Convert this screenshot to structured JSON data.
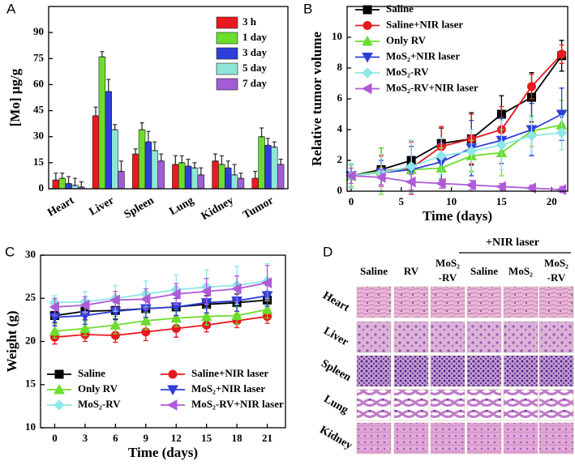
{
  "chart_data": [
    {
      "type": "bar",
      "label": "A",
      "ylabel": "[Mo] μg/g",
      "categories": [
        "Heart",
        "Liver",
        "Spleen",
        "Lung",
        "Kidney",
        "Tumor"
      ],
      "series": [
        {
          "name": "3 h",
          "color": "#e8191f",
          "values": [
            5,
            42,
            20,
            14,
            16,
            6
          ],
          "errors": [
            4,
            5,
            3,
            5,
            4,
            4
          ]
        },
        {
          "name": "1 day",
          "color": "#6cdd2b",
          "values": [
            6,
            76,
            34,
            15,
            14,
            30
          ],
          "errors": [
            3,
            3,
            4,
            4,
            5,
            5
          ]
        },
        {
          "name": "3 day",
          "color": "#2e3fd8",
          "values": [
            3,
            56,
            27,
            13,
            12,
            25
          ],
          "errors": [
            4,
            7,
            6,
            4,
            4,
            4
          ]
        },
        {
          "name": "5 day",
          "color": "#8ee6d8",
          "values": [
            2,
            34,
            22,
            12,
            8,
            24
          ],
          "errors": [
            4,
            3,
            5,
            3,
            6,
            3
          ]
        },
        {
          "name": "7 day",
          "color": "#a25cd6",
          "values": [
            1,
            10,
            16,
            8,
            6,
            14
          ],
          "errors": [
            3,
            6,
            4,
            4,
            3,
            3
          ]
        }
      ],
      "ylim": [
        0,
        105
      ],
      "yticks": [
        0,
        15,
        30,
        45,
        60,
        75,
        90
      ],
      "legend": "upper right"
    },
    {
      "type": "line",
      "label": "B",
      "xlabel": "Time (days)",
      "ylabel": "Relative tumor volume",
      "x": [
        0,
        3,
        6,
        9,
        12,
        15,
        18,
        21
      ],
      "series": [
        {
          "name": "Saline",
          "color": "#000000",
          "marker": "square",
          "values": [
            1,
            1.4,
            2,
            3.1,
            3.4,
            5,
            6.1,
            8.8
          ],
          "errors": [
            0.8,
            1.4,
            1.3,
            1,
            1.7,
            1.2,
            1.6,
            1
          ]
        },
        {
          "name": "Saline+NIR laser",
          "color": "#e8191f",
          "marker": "circle",
          "values": [
            1,
            1.3,
            1.5,
            2.9,
            3.4,
            4,
            6.8,
            8.9
          ],
          "errors": [
            0.8,
            1,
            1.7,
            1.3,
            1.6,
            1.5,
            0.8,
            0.6
          ]
        },
        {
          "name": "Only RV",
          "color": "#6cdd2b",
          "marker": "triangle-up",
          "values": [
            1,
            1.3,
            1.4,
            1.5,
            2.3,
            2.5,
            3.9,
            4.3
          ],
          "errors": [
            0.7,
            1.5,
            1.5,
            1.3,
            1,
            1.5,
            1,
            1.6
          ]
        },
        {
          "name": "MoS₂+NIR laser",
          "color": "#2e3fd8",
          "marker": "triangle-down",
          "values": [
            1,
            1.2,
            1.4,
            1.9,
            2.8,
            3.3,
            4,
            5
          ],
          "errors": [
            0.8,
            0.8,
            1.5,
            1.2,
            1.8,
            1.5,
            1.7,
            1.7
          ]
        },
        {
          "name": "MoS₂-RV",
          "color": "#8ee6e8",
          "marker": "diamond",
          "values": [
            1,
            1.2,
            1.6,
            2.3,
            2.6,
            3,
            3.6,
            3.8
          ],
          "errors": [
            0.8,
            1.2,
            1.7,
            1.2,
            1.4,
            1.6,
            1.2,
            1.1
          ]
        },
        {
          "name": "MoS₂-RV+NIR laser",
          "color": "#b05ad8",
          "marker": "triangle-left",
          "values": [
            1,
            0.9,
            0.6,
            0.5,
            0.4,
            0.3,
            0.2,
            0.1
          ],
          "errors": [
            0.5,
            0.5,
            0.5,
            0.3,
            0.3,
            0.2,
            0.2,
            0.2
          ]
        }
      ],
      "xlim": [
        -0.4,
        21.6
      ],
      "xticks": [
        0,
        5,
        10,
        15,
        20
      ],
      "ylim": [
        0,
        12
      ],
      "yticks": [
        0,
        2,
        4,
        6,
        8,
        10
      ],
      "legend": "upper left"
    },
    {
      "type": "line",
      "label": "C",
      "xlabel": "Time (days)",
      "ylabel": "Weight (g)",
      "x": [
        0,
        3,
        6,
        9,
        12,
        15,
        18,
        21
      ],
      "series": [
        {
          "name": "Saline",
          "color": "#000000",
          "marker": "square",
          "values": [
            23,
            23.5,
            23.6,
            23.8,
            24,
            24.3,
            24.5,
            24.8
          ],
          "errors": [
            0.8,
            1,
            1,
            1,
            1,
            1,
            1,
            1
          ]
        },
        {
          "name": "Saline+NIR laser",
          "color": "#e8191f",
          "marker": "circle",
          "values": [
            20.5,
            20.8,
            20.7,
            21.1,
            21.5,
            21.9,
            22.4,
            22.9
          ],
          "errors": [
            0.8,
            0.8,
            0.8,
            1,
            1,
            0.8,
            0.8,
            0.8
          ]
        },
        {
          "name": "Only RV",
          "color": "#6cdd2b",
          "marker": "triangle-up",
          "values": [
            21.2,
            21.5,
            21.9,
            22.4,
            22.7,
            22.9,
            23,
            23.7
          ],
          "errors": [
            0.8,
            0.8,
            1,
            1,
            1,
            1,
            1,
            1
          ]
        },
        {
          "name": "MoS₂+NIR laser",
          "color": "#2e3fd8",
          "marker": "triangle-down",
          "values": [
            22.8,
            23,
            23.5,
            23.8,
            24,
            24.5,
            24.7,
            25.3
          ],
          "errors": [
            1,
            1,
            1,
            1,
            1,
            1.2,
            1.2,
            1.2
          ]
        },
        {
          "name": "MoS₂-RV",
          "color": "#8ee6e8",
          "marker": "diamond",
          "values": [
            24.5,
            24.6,
            25,
            25.5,
            26,
            26.3,
            26.5,
            27
          ],
          "errors": [
            0.8,
            1.2,
            1.5,
            1.5,
            1.7,
            2,
            2.2,
            2
          ]
        },
        {
          "name": "MoS₂-RV+NIR laser",
          "color": "#b05ad8",
          "marker": "triangle-left",
          "values": [
            24,
            24.2,
            24.8,
            24.9,
            25.5,
            25.8,
            26.1,
            26.8
          ],
          "errors": [
            1,
            1,
            1,
            1.2,
            1.2,
            1.5,
            1.5,
            2
          ]
        }
      ],
      "xlim": [
        -1.4,
        22.8
      ],
      "xticks": [
        0,
        3,
        6,
        9,
        12,
        15,
        18,
        21
      ],
      "ylim": [
        10,
        30
      ],
      "yticks": [
        10,
        15,
        20,
        25,
        30
      ],
      "legend": "lower center"
    }
  ],
  "panel_d": {
    "label": "D",
    "group_header": "+NIR laser",
    "columns": [
      [
        "Saline"
      ],
      [
        "RV"
      ],
      [
        "MoS₂",
        "-RV"
      ],
      [
        "Saline"
      ],
      [
        "MoS₂"
      ],
      [
        "MoS₂",
        "-RV"
      ]
    ],
    "rows": [
      "Heart",
      "Liver",
      "Spleen",
      "Lung",
      "Kidney"
    ]
  }
}
